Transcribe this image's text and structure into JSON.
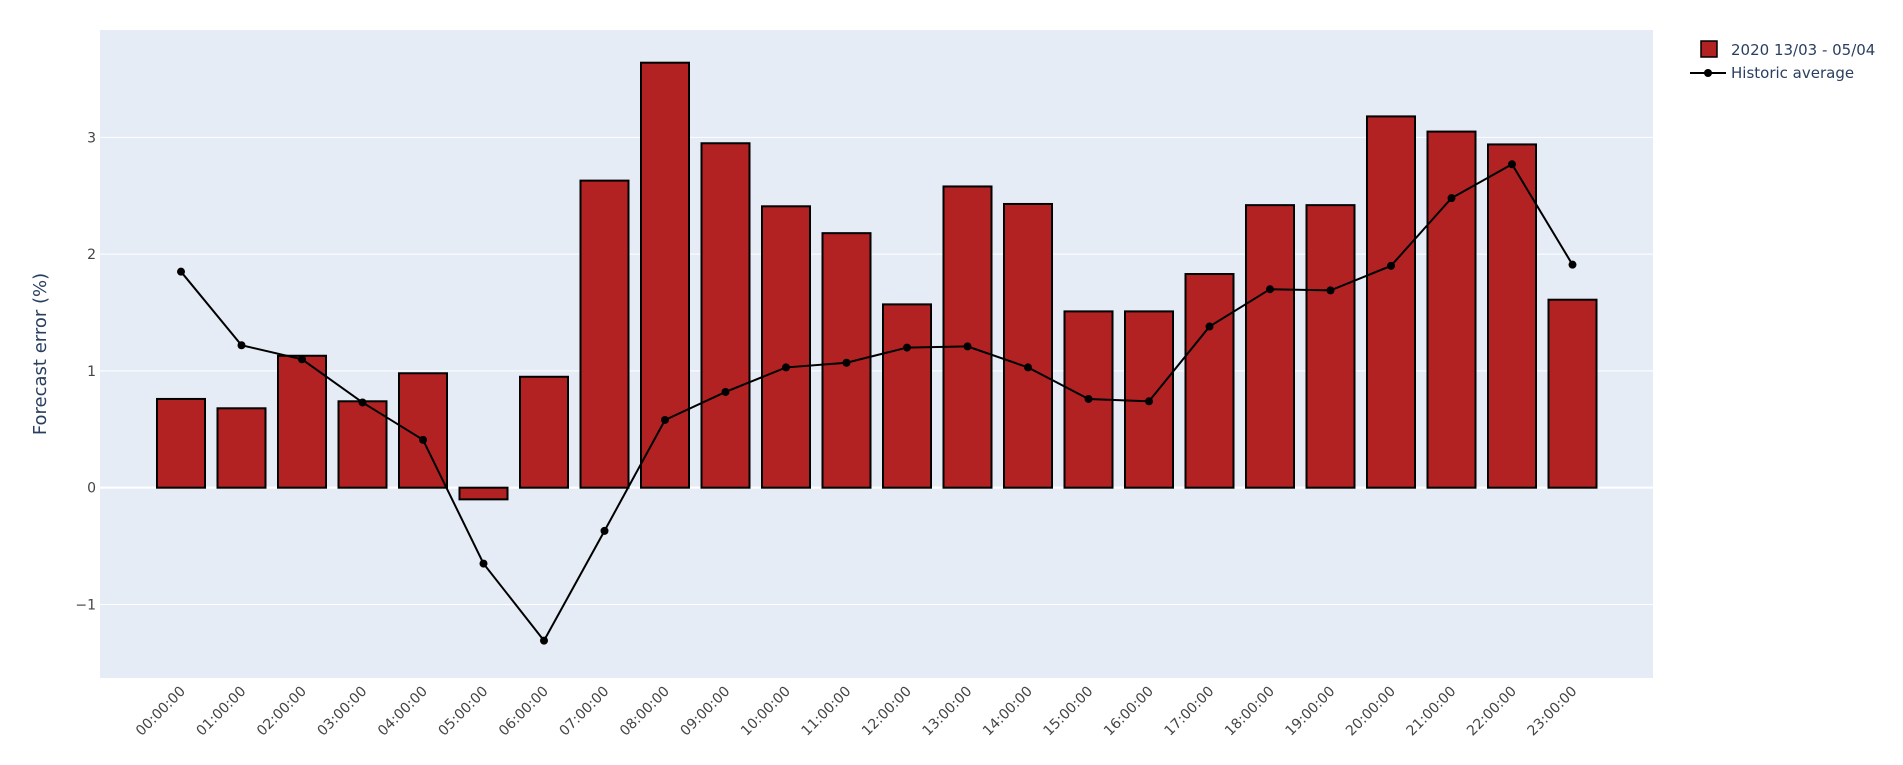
{
  "chart_data": {
    "type": "bar",
    "categories": [
      "00:00:00",
      "01:00:00",
      "02:00:00",
      "03:00:00",
      "04:00:00",
      "05:00:00",
      "06:00:00",
      "07:00:00",
      "08:00:00",
      "09:00:00",
      "10:00:00",
      "11:00:00",
      "12:00:00",
      "13:00:00",
      "14:00:00",
      "15:00:00",
      "16:00:00",
      "17:00:00",
      "18:00:00",
      "19:00:00",
      "20:00:00",
      "21:00:00",
      "22:00:00",
      "23:00:00"
    ],
    "series": [
      {
        "name": "2020 13/03 - 05/04",
        "type": "bar",
        "color": "#b22222",
        "values": [
          0.76,
          0.68,
          1.13,
          0.74,
          0.98,
          -0.1,
          0.95,
          2.63,
          3.64,
          2.95,
          2.41,
          2.18,
          1.57,
          2.58,
          2.43,
          1.51,
          1.51,
          1.83,
          2.42,
          2.42,
          3.18,
          3.05,
          2.94,
          1.61
        ]
      },
      {
        "name": "Historic average",
        "type": "line",
        "color": "#000000",
        "values": [
          1.85,
          1.22,
          1.1,
          0.73,
          0.41,
          -0.65,
          -1.31,
          -0.37,
          0.58,
          0.82,
          1.03,
          1.07,
          1.2,
          1.21,
          1.03,
          0.76,
          0.74,
          1.38,
          1.7,
          1.69,
          1.9,
          2.48,
          2.77,
          1.91
        ]
      }
    ],
    "title": "",
    "xlabel": "",
    "ylabel": "Forecast error (%)",
    "ylim": [
      -1.63,
      3.92
    ],
    "yticks": [
      -1,
      0,
      1,
      2,
      3
    ],
    "ytick_labels": [
      "−1",
      "0",
      "1",
      "2",
      "3"
    ],
    "grid": true,
    "legend_position": "top-right",
    "plot_background": "#e5ecf6"
  }
}
